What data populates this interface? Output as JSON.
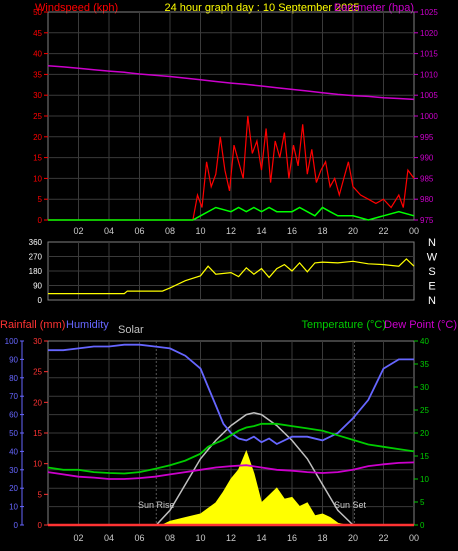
{
  "colors": {
    "background": "#000000",
    "frame": "#808080",
    "grid": "#3a3a3a",
    "wind": "#ff0000",
    "gust": "#00ff00",
    "baro": "#cc00cc",
    "dir": "#ffff00",
    "dirText": "#ffffff",
    "hum": "#6666ff",
    "rain": "#ff3333",
    "solar": "#ffff00",
    "solarMax": "#c0c0c0",
    "temp": "#00cc00",
    "dew": "#cc00cc",
    "xticks": "#cccccc"
  },
  "header": {
    "left": "Windspeed (kph)",
    "center": "24 hour graph day : 10 September 2025",
    "right": "Barometer (hpa)"
  },
  "xtick_labels": [
    "02",
    "04",
    "06",
    "08",
    "10",
    "12",
    "14",
    "16",
    "18",
    "20",
    "22",
    "00"
  ],
  "wind_panel": {
    "left_ticks": [
      "50",
      "45",
      "40",
      "35",
      "30",
      "25",
      "20",
      "15",
      "10",
      "5",
      "0"
    ],
    "right_ticks": [
      "1025",
      "1020",
      "1015",
      "1010",
      "1005",
      "1000",
      "995",
      "990",
      "985",
      "980",
      "975"
    ]
  },
  "dir_panel": {
    "ticks": [
      "360",
      "270",
      "180",
      "90",
      "0"
    ],
    "compass": [
      "N",
      "W",
      "S",
      "E",
      "N"
    ]
  },
  "bottom_panel": {
    "rain_label": "Rainfall (mm)",
    "hum_label": "Humidity",
    "solar_label": "Solar",
    "temp_label": "Temperature (°C)",
    "dew_label": "Dew Point (°C)",
    "hum_ticks": [
      "100",
      "90",
      "80",
      "70",
      "60",
      "50",
      "40",
      "30",
      "20",
      "10",
      "0"
    ],
    "rain_ticks": [
      "30",
      "25",
      "20",
      "15",
      "10",
      "5",
      "0"
    ],
    "temp_ticks": [
      "40",
      "35",
      "30",
      "25",
      "20",
      "15",
      "10",
      "5",
      "0"
    ],
    "sunrise_label": "Sun Rise",
    "sunset_label": "Sun Set"
  },
  "chart_data": [
    {
      "type": "line",
      "xrange_hours": [
        0,
        24
      ],
      "ylim": [
        0,
        50
      ],
      "y2lim": [
        975,
        1025
      ],
      "series": [
        {
          "name": "Windspeed (kph)",
          "x": [
            0,
            9.5,
            9.8,
            10.1,
            10.4,
            10.7,
            11,
            11.3,
            11.6,
            11.9,
            12.2,
            12.5,
            12.8,
            13.1,
            13.4,
            13.7,
            14,
            14.3,
            14.6,
            14.9,
            15.2,
            15.5,
            15.8,
            16.1,
            16.4,
            16.7,
            17,
            17.3,
            17.6,
            17.9,
            18.2,
            18.5,
            18.8,
            19.1,
            19.4,
            19.7,
            20,
            20.5,
            21,
            21.5,
            22,
            22.5,
            23,
            23.3,
            23.6,
            24
          ],
          "values": [
            0,
            0,
            6,
            3,
            14,
            8,
            11,
            20,
            12,
            7,
            18,
            14,
            10,
            25,
            16,
            19,
            12,
            22,
            9,
            19,
            15,
            21,
            10,
            18,
            13,
            23,
            11,
            17,
            9,
            12,
            14,
            8,
            10,
            6,
            10,
            14,
            8,
            6,
            5,
            4,
            5,
            3,
            6,
            3,
            12,
            10
          ]
        },
        {
          "name": "Gust (kph)",
          "x": [
            0,
            9.5,
            10,
            11,
            12,
            12.5,
            13,
            13.5,
            14,
            14.5,
            15,
            16,
            16.5,
            17,
            17.5,
            18,
            18.5,
            19,
            19.5,
            20,
            21,
            22,
            23,
            24
          ],
          "values": [
            0,
            0,
            1,
            3,
            2,
            3,
            2,
            3,
            2,
            3,
            2,
            2,
            3,
            2,
            1,
            3,
            2,
            1,
            1,
            1,
            0,
            1,
            2,
            1
          ]
        },
        {
          "name": "Barometer (hpa)",
          "x": [
            0,
            1,
            2,
            3,
            4,
            5,
            6,
            7,
            8,
            9,
            10,
            11,
            12,
            13,
            14,
            15,
            16,
            17,
            18,
            19,
            20,
            21,
            22,
            23,
            24
          ],
          "values": [
            1012.1,
            1011.8,
            1011.5,
            1011.1,
            1010.8,
            1010.5,
            1010.1,
            1009.8,
            1009.5,
            1009.1,
            1008.7,
            1008.3,
            1007.9,
            1007.6,
            1007.2,
            1006.8,
            1006.4,
            1006.0,
            1005.6,
            1005.2,
            1004.9,
            1004.7,
            1004.4,
            1004.2,
            1004.0
          ]
        }
      ]
    },
    {
      "type": "line",
      "xrange_hours": [
        0,
        24
      ],
      "ylim": [
        0,
        360
      ],
      "series": [
        {
          "name": "Wind direction",
          "x": [
            0,
            2,
            4,
            5,
            5.2,
            7.5,
            8,
            9,
            10,
            10.5,
            11,
            12,
            12.5,
            13,
            13.5,
            14,
            14.5,
            15,
            15.5,
            16,
            16.5,
            17,
            17.5,
            18,
            19,
            20,
            21,
            22,
            23,
            23.5,
            24
          ],
          "values": [
            40,
            40,
            40,
            40,
            55,
            55,
            75,
            120,
            150,
            210,
            160,
            170,
            145,
            200,
            160,
            195,
            140,
            195,
            220,
            180,
            230,
            175,
            230,
            235,
            230,
            240,
            225,
            220,
            210,
            255,
            210
          ]
        }
      ]
    },
    {
      "type": "area",
      "xrange_hours": [
        0,
        24
      ],
      "ylim": [
        0,
        100
      ],
      "y2lim": [
        0,
        40
      ],
      "series": [
        {
          "name": "Humidity",
          "x": [
            0,
            1,
            2,
            3,
            4,
            5,
            6,
            7,
            8,
            9,
            10,
            10.5,
            11,
            11.5,
            12,
            12.5,
            13,
            13.5,
            14,
            14.5,
            15,
            16,
            17,
            18,
            19,
            20,
            21,
            22,
            23,
            24
          ],
          "values": [
            95,
            95,
            96,
            97,
            97,
            98,
            98,
            97,
            96,
            92,
            85,
            75,
            65,
            55,
            50,
            47,
            46,
            48,
            45,
            47,
            44,
            48,
            48,
            46,
            50,
            58,
            68,
            85,
            90,
            90
          ]
        },
        {
          "name": "Temperature (°C)",
          "x": [
            0,
            1,
            2,
            3,
            4,
            5,
            6,
            7,
            8,
            9,
            10,
            10.5,
            11,
            11.5,
            12,
            12.5,
            13,
            13.5,
            14,
            15,
            16,
            17,
            18,
            19,
            20,
            21,
            22,
            23,
            24
          ],
          "values": [
            12.5,
            12.0,
            12.0,
            11.5,
            11.3,
            11.2,
            11.5,
            12.2,
            13.0,
            14.0,
            15.5,
            17.0,
            17.8,
            18.5,
            19.5,
            20.5,
            21.2,
            21.5,
            22.0,
            22.0,
            21.5,
            21.0,
            20.5,
            19.5,
            18.5,
            17.5,
            17.0,
            16.5,
            16.0
          ]
        },
        {
          "name": "Dew Point (°C)",
          "x": [
            0,
            1,
            2,
            3,
            4,
            5,
            6,
            7,
            8,
            9,
            10,
            11,
            12,
            13,
            14,
            15,
            16,
            17,
            18,
            19,
            20,
            21,
            22,
            23,
            24
          ],
          "values": [
            11.5,
            11.0,
            10.5,
            10.3,
            10.0,
            10.0,
            10.2,
            10.5,
            11.0,
            11.5,
            12.0,
            12.5,
            12.8,
            13.0,
            12.5,
            12.0,
            11.8,
            11.5,
            11.3,
            11.5,
            12.0,
            12.8,
            13.2,
            13.5,
            13.6
          ]
        },
        {
          "name": "Solar",
          "x": [
            7.5,
            8,
            9,
            10,
            11,
            11.5,
            12,
            12.5,
            13,
            13.5,
            14,
            14.5,
            15,
            15.5,
            16,
            16.5,
            17,
            17.5,
            18,
            18.5,
            19,
            19.5
          ],
          "values": [
            0,
            2,
            4,
            6,
            12,
            18,
            25,
            30,
            40,
            28,
            12,
            16,
            20,
            14,
            15,
            10,
            12,
            5,
            6,
            4,
            1,
            0
          ]
        },
        {
          "name": "Solar max",
          "x": [
            7.1,
            8,
            9,
            10,
            11,
            12,
            13,
            13.5,
            14,
            15,
            16,
            17,
            18,
            19,
            20
          ],
          "values": [
            0,
            8,
            22,
            36,
            46,
            54,
            60,
            61,
            60,
            54,
            46,
            36,
            22,
            8,
            0
          ]
        },
        {
          "name": "Rainfall (mm)",
          "x": [
            0,
            24
          ],
          "values": [
            0,
            0
          ]
        }
      ],
      "annotations": [
        "Sun Rise",
        "Sun Set"
      ],
      "sunrise_hour": 7.1,
      "sunset_hour": 20.1
    }
  ]
}
